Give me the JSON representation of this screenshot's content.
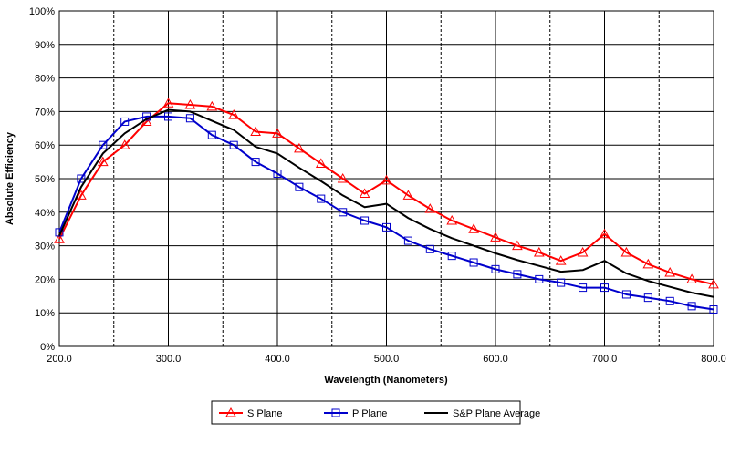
{
  "chart_data": {
    "type": "line",
    "title": "",
    "xlabel": "Wavelength (Nanometers)",
    "ylabel": "Absolute Efficiency",
    "xlim": [
      200,
      800
    ],
    "ylim": [
      0,
      100
    ],
    "xticks": [
      "200.0",
      "300.0",
      "400.0",
      "500.0",
      "600.0",
      "700.0",
      "800.0"
    ],
    "yticks": [
      "0%",
      "10%",
      "20%",
      "30%",
      "40%",
      "50%",
      "60%",
      "70%",
      "80%",
      "90%",
      "100%"
    ],
    "grid": true,
    "legend_position": "bottom",
    "x": [
      200,
      220,
      240,
      260,
      280,
      300,
      320,
      340,
      360,
      380,
      400,
      420,
      440,
      460,
      480,
      500,
      520,
      540,
      560,
      580,
      600,
      620,
      640,
      660,
      680,
      700,
      720,
      740,
      760,
      780,
      800
    ],
    "series": [
      {
        "name": "S Plane",
        "color": "#ff0000",
        "marker": "triangle",
        "values": [
          32,
          45,
          55,
          60,
          67,
          72.5,
          72,
          71.5,
          69,
          64,
          63.5,
          59,
          54.5,
          50,
          45.5,
          49.5,
          45,
          41,
          37.5,
          35,
          32.5,
          30,
          28,
          25.5,
          28,
          33.5,
          28,
          24.5,
          22,
          20,
          18.5
        ]
      },
      {
        "name": "P Plane",
        "color": "#0000cc",
        "marker": "square",
        "values": [
          34,
          50,
          60,
          67,
          68.5,
          68.5,
          68,
          63,
          60,
          55,
          51.5,
          47.5,
          44,
          40,
          37.5,
          35.5,
          31.5,
          29,
          27,
          25,
          23,
          21.5,
          20,
          19,
          17.5,
          17.5,
          15.5,
          14.5,
          13.5,
          12,
          11
        ]
      },
      {
        "name": "S&P Plane Average",
        "color": "#000000",
        "marker": "none",
        "values": [
          33,
          47.5,
          57.5,
          63.5,
          67.75,
          70.5,
          70,
          67.25,
          64.5,
          59.5,
          57.5,
          53.25,
          49.25,
          45,
          41.5,
          42.5,
          38.25,
          35,
          32.25,
          30,
          27.75,
          25.75,
          24,
          22.25,
          22.75,
          25.5,
          21.75,
          19.5,
          17.75,
          16,
          14.75
        ]
      }
    ]
  }
}
